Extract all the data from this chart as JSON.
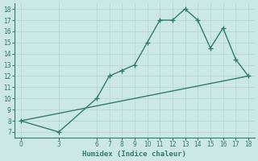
{
  "line1_x": [
    0,
    3,
    6,
    7,
    8,
    9,
    10,
    11,
    12,
    13,
    14,
    15,
    16,
    17,
    18
  ],
  "line1_y": [
    8,
    7,
    10,
    12,
    12.5,
    13,
    15,
    17,
    17,
    18,
    17,
    14.5,
    16.3,
    13.5,
    12
  ],
  "line2_x": [
    0,
    18
  ],
  "line2_y": [
    8,
    12
  ],
  "line_color": "#2e7d6e",
  "bg_color": "#cce8e4",
  "grid_color": "#b8d8d4",
  "xlabel": "Humidex (Indice chaleur)",
  "xlim": [
    -0.5,
    18.5
  ],
  "ylim": [
    6.5,
    18.5
  ],
  "xticks": [
    0,
    3,
    6,
    7,
    8,
    9,
    10,
    11,
    12,
    13,
    14,
    15,
    16,
    17,
    18
  ],
  "yticks": [
    7,
    8,
    9,
    10,
    11,
    12,
    13,
    14,
    15,
    16,
    17,
    18
  ],
  "marker": "+",
  "markersize": 4,
  "linewidth": 1.0
}
